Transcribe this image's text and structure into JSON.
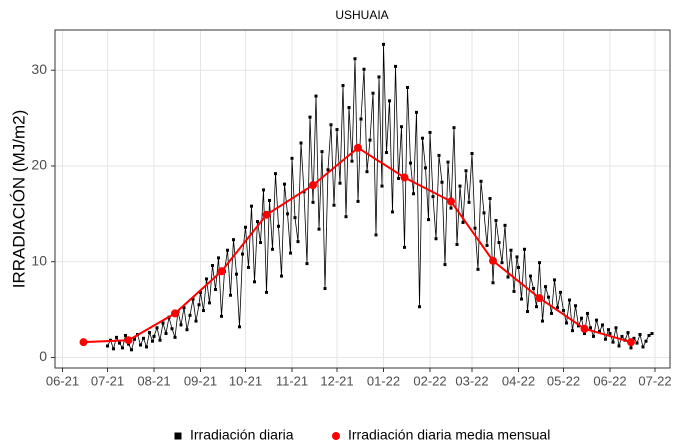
{
  "chart_data": {
    "type": "line",
    "title": "USHUAIA",
    "ylabel": "IRRADIACIÓN (MJ/m2)",
    "xlim": [
      "2021-05-27",
      "2022-07-11"
    ],
    "xticks": [
      {
        "value": "2021-06",
        "label": "06-21"
      },
      {
        "value": "2021-07",
        "label": "07-21"
      },
      {
        "value": "2021-08",
        "label": "08-21"
      },
      {
        "value": "2021-09",
        "label": "09-21"
      },
      {
        "value": "2021-10",
        "label": "10-21"
      },
      {
        "value": "2021-11",
        "label": "11-21"
      },
      {
        "value": "2021-12",
        "label": "12-21"
      },
      {
        "value": "2022-01",
        "label": "01-22"
      },
      {
        "value": "2022-02",
        "label": "02-22"
      },
      {
        "value": "2022-03",
        "label": "03-22"
      },
      {
        "value": "2022-04",
        "label": "04-22"
      },
      {
        "value": "2022-05",
        "label": "05-22"
      },
      {
        "value": "2022-06",
        "label": "06-22"
      },
      {
        "value": "2022-07",
        "label": "07-22"
      }
    ],
    "ylim": [
      -1.1,
      34.2
    ],
    "yticks": [
      0,
      10,
      20,
      30
    ],
    "grid": true,
    "legend": "bottom",
    "series": [
      {
        "name": "Irradiación diaria",
        "color": "#000000",
        "marker": "square",
        "x": [
          "2021-07-01",
          "2021-07-03",
          "2021-07-05",
          "2021-07-07",
          "2021-07-09",
          "2021-07-11",
          "2021-07-13",
          "2021-07-15",
          "2021-07-17",
          "2021-07-19",
          "2021-07-21",
          "2021-07-23",
          "2021-07-25",
          "2021-07-27",
          "2021-07-29",
          "2021-07-31",
          "2021-08-01",
          "2021-08-03",
          "2021-08-05",
          "2021-08-07",
          "2021-08-09",
          "2021-08-11",
          "2021-08-13",
          "2021-08-15",
          "2021-08-17",
          "2021-08-19",
          "2021-08-21",
          "2021-08-23",
          "2021-08-25",
          "2021-08-27",
          "2021-08-29",
          "2021-08-31",
          "2021-09-01",
          "2021-09-03",
          "2021-09-05",
          "2021-09-07",
          "2021-09-09",
          "2021-09-11",
          "2021-09-13",
          "2021-09-15",
          "2021-09-17",
          "2021-09-19",
          "2021-09-21",
          "2021-09-23",
          "2021-09-25",
          "2021-09-27",
          "2021-09-29",
          "2021-10-01",
          "2021-10-03",
          "2021-10-05",
          "2021-10-07",
          "2021-10-09",
          "2021-10-11",
          "2021-10-13",
          "2021-10-15",
          "2021-10-17",
          "2021-10-19",
          "2021-10-21",
          "2021-10-23",
          "2021-10-25",
          "2021-10-27",
          "2021-10-29",
          "2021-10-31",
          "2021-11-01",
          "2021-11-03",
          "2021-11-05",
          "2021-11-07",
          "2021-11-09",
          "2021-11-11",
          "2021-11-13",
          "2021-11-15",
          "2021-11-17",
          "2021-11-19",
          "2021-11-21",
          "2021-11-23",
          "2021-11-25",
          "2021-11-27",
          "2021-11-29",
          "2021-12-01",
          "2021-12-03",
          "2021-12-05",
          "2021-12-07",
          "2021-12-09",
          "2021-12-11",
          "2021-12-13",
          "2021-12-15",
          "2021-12-17",
          "2021-12-19",
          "2021-12-21",
          "2021-12-23",
          "2021-12-25",
          "2021-12-27",
          "2021-12-29",
          "2021-12-31",
          "2022-01-01",
          "2022-01-03",
          "2022-01-05",
          "2022-01-07",
          "2022-01-09",
          "2022-01-11",
          "2022-01-13",
          "2022-01-15",
          "2022-01-17",
          "2022-01-19",
          "2022-01-21",
          "2022-01-23",
          "2022-01-25",
          "2022-01-27",
          "2022-01-29",
          "2022-01-31",
          "2022-02-01",
          "2022-02-03",
          "2022-02-05",
          "2022-02-07",
          "2022-02-09",
          "2022-02-11",
          "2022-02-13",
          "2022-02-15",
          "2022-02-17",
          "2022-02-19",
          "2022-02-21",
          "2022-02-23",
          "2022-02-25",
          "2022-02-27",
          "2022-03-01",
          "2022-03-03",
          "2022-03-05",
          "2022-03-07",
          "2022-03-09",
          "2022-03-11",
          "2022-03-13",
          "2022-03-15",
          "2022-03-17",
          "2022-03-19",
          "2022-03-21",
          "2022-03-23",
          "2022-03-25",
          "2022-03-27",
          "2022-03-29",
          "2022-03-31",
          "2022-04-01",
          "2022-04-03",
          "2022-04-05",
          "2022-04-07",
          "2022-04-09",
          "2022-04-11",
          "2022-04-13",
          "2022-04-15",
          "2022-04-17",
          "2022-04-19",
          "2022-04-21",
          "2022-04-23",
          "2022-04-25",
          "2022-04-27",
          "2022-04-29",
          "2022-05-01",
          "2022-05-03",
          "2022-05-05",
          "2022-05-07",
          "2022-05-09",
          "2022-05-11",
          "2022-05-13",
          "2022-05-15",
          "2022-05-17",
          "2022-05-19",
          "2022-05-21",
          "2022-05-23",
          "2022-05-25",
          "2022-05-27",
          "2022-05-29",
          "2022-05-31",
          "2022-06-01",
          "2022-06-03",
          "2022-06-05",
          "2022-06-07",
          "2022-06-09",
          "2022-06-11",
          "2022-06-13",
          "2022-06-15",
          "2022-06-17",
          "2022-06-19",
          "2022-06-21",
          "2022-06-23",
          "2022-06-25",
          "2022-06-27",
          "2022-06-29"
        ],
        "values": [
          1.2,
          1.8,
          0.9,
          2.1,
          1.5,
          1.0,
          2.3,
          1.4,
          0.8,
          1.9,
          2.4,
          1.3,
          2.0,
          1.1,
          2.6,
          1.7,
          2.2,
          3.1,
          1.8,
          3.6,
          2.5,
          4.2,
          3.0,
          2.1,
          4.8,
          3.4,
          5.2,
          2.9,
          4.4,
          6.1,
          3.8,
          5.5,
          6.8,
          4.9,
          8.2,
          5.7,
          9.6,
          7.1,
          10.4,
          4.3,
          9.0,
          11.2,
          6.5,
          12.3,
          8.7,
          3.2,
          10.8,
          13.6,
          9.4,
          15.8,
          7.9,
          14.2,
          12.0,
          17.5,
          6.8,
          16.4,
          11.3,
          19.2,
          13.7,
          8.5,
          18.1,
          15.0,
          10.9,
          20.8,
          14.6,
          12.1,
          22.4,
          17.3,
          9.8,
          25.1,
          16.2,
          27.3,
          13.4,
          21.5,
          7.2,
          19.6,
          24.3,
          15.9,
          23.8,
          18.2,
          28.4,
          14.7,
          26.1,
          20.5,
          31.2,
          16.3,
          24.9,
          30.1,
          19.4,
          22.7,
          27.6,
          12.8,
          29.3,
          17.9,
          32.7,
          21.4,
          26.8,
          15.2,
          30.4,
          18.7,
          24.1,
          11.5,
          28.2,
          20.3,
          17.1,
          25.6,
          5.3,
          22.9,
          19.8,
          14.4,
          23.5,
          16.8,
          12.4,
          21.1,
          18.3,
          9.7,
          20.4,
          15.6,
          24.0,
          11.8,
          17.9,
          14.1,
          19.5,
          16.2,
          21.3,
          13.5,
          9.2,
          18.4,
          15.1,
          11.7,
          16.6,
          7.8,
          14.3,
          12.0,
          9.9,
          13.8,
          8.4,
          11.2,
          6.9,
          10.5,
          9.4,
          6.1,
          11.3,
          4.8,
          8.5,
          7.2,
          5.3,
          9.9,
          3.8,
          7.4,
          6.3,
          4.6,
          8.1,
          5.2,
          6.8,
          4.9,
          3.6,
          6.0,
          2.8,
          5.4,
          3.3,
          4.1,
          2.5,
          4.6,
          3.1,
          2.2,
          3.9,
          2.7,
          3.4,
          1.9,
          2.9,
          2.5,
          1.6,
          3.1,
          1.2,
          2.2,
          1.8,
          2.6,
          1.0,
          2.0,
          1.5,
          2.4,
          1.1,
          1.7,
          2.3,
          2.5
        ]
      },
      {
        "name": "Irradiación diaria media mensual",
        "color": "#ff0000",
        "marker": "circle",
        "x": [
          "2021-06",
          "2021-07",
          "2021-08",
          "2021-09",
          "2021-10",
          "2021-11",
          "2021-12",
          "2022-01",
          "2022-02",
          "2022-03",
          "2022-04",
          "2022-05",
          "2022-06"
        ],
        "values": [
          1.6,
          1.8,
          4.6,
          9.0,
          14.9,
          18.0,
          21.9,
          18.8,
          16.3,
          10.1,
          6.2,
          3.0,
          1.6
        ]
      }
    ]
  }
}
